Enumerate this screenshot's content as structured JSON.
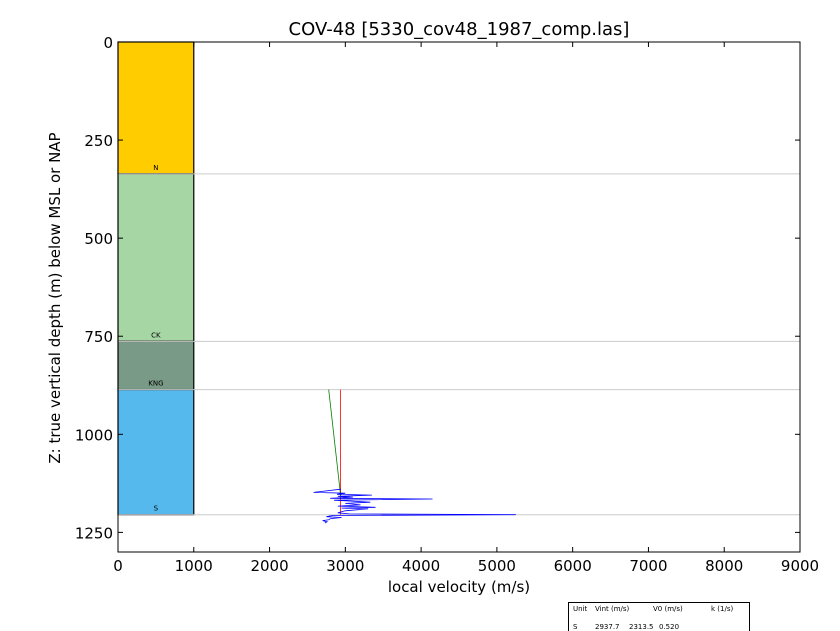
{
  "chart_data": {
    "type": "line",
    "title": "COV-48 [5330_cov48_1987_comp.las]",
    "xlabel": "local velocity (m/s)",
    "ylabel": "Z: true vertical depth (m) below MSL or NAP",
    "xlim": [
      0,
      9000
    ],
    "ylim": [
      1300,
      0
    ],
    "y_inverted": true,
    "grid": false,
    "xticks": [
      "0",
      "1000",
      "2000",
      "3000",
      "4000",
      "5000",
      "6000",
      "7000",
      "8000",
      "9000"
    ],
    "yticks": [
      "0",
      "250",
      "500",
      "750",
      "1000",
      "1250"
    ],
    "units": [
      {
        "label": "N",
        "top": 0,
        "base": 336,
        "color": "#FFCC00"
      },
      {
        "label": "CK",
        "top": 336,
        "base": 763,
        "color": "#A6D6A4"
      },
      {
        "label": "KNG",
        "top": 763,
        "base": 886,
        "color": "#789A86"
      },
      {
        "label": "S",
        "top": 886,
        "base": 1205,
        "color": "#55B9EE"
      }
    ],
    "unit_column_velocity": 1000,
    "boundary_lines": [
      336,
      763,
      886,
      1205
    ],
    "boundary_line_color": "#cccccc",
    "series": [
      {
        "color": "#ff0000",
        "points": [
          [
            2938,
            886
          ],
          [
            2938,
            1205
          ]
        ]
      },
      {
        "color": "#008000",
        "points": [
          [
            2780,
            886
          ],
          [
            2940,
            1160
          ]
        ]
      },
      {
        "color": "#0000ff",
        "points": [
          [
            2940,
            1140
          ],
          [
            2580,
            1148
          ],
          [
            3000,
            1150
          ],
          [
            2890,
            1153
          ],
          [
            3350,
            1155
          ],
          [
            2900,
            1158
          ],
          [
            3100,
            1160
          ],
          [
            2800,
            1163
          ],
          [
            4150,
            1165
          ],
          [
            2850,
            1168
          ],
          [
            3050,
            1170
          ],
          [
            3330,
            1173
          ],
          [
            3000,
            1176
          ],
          [
            3200,
            1180
          ],
          [
            2900,
            1183
          ],
          [
            3400,
            1186
          ],
          [
            2950,
            1188
          ],
          [
            3300,
            1190
          ],
          [
            3000,
            1195
          ],
          [
            2900,
            1200
          ],
          [
            3050,
            1203
          ],
          [
            5250,
            1205
          ],
          [
            2830,
            1207
          ],
          [
            2750,
            1210
          ],
          [
            2950,
            1212
          ],
          [
            2800,
            1215
          ],
          [
            2780,
            1218
          ],
          [
            2700,
            1220
          ],
          [
            2760,
            1223
          ],
          [
            2730,
            1226
          ]
        ]
      }
    ],
    "table": {
      "headers": [
        "Unit",
        "Vint (m/s)",
        "V0 (m/s)",
        "k (1/s)"
      ],
      "rows": [
        [
          "S",
          "2937.7",
          "2313.5",
          "0.520"
        ]
      ]
    }
  }
}
